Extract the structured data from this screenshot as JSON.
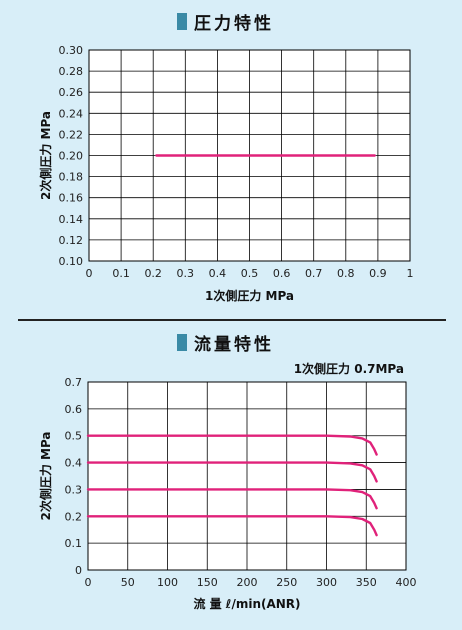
{
  "colors": {
    "background": "#d8eef8",
    "title_marker": "#3a8aa6",
    "series": "#e0227a",
    "grid": "#000000",
    "divider": "#222222"
  },
  "chart_data": [
    {
      "type": "line",
      "title": "圧力特性",
      "xlabel": "1次側圧力 MPa",
      "ylabel": "2次側圧力 MPa",
      "xlim": [
        0,
        1
      ],
      "ylim": [
        0.1,
        0.3
      ],
      "xticks": [
        "0",
        "0.1",
        "0.2",
        "0.3",
        "0.4",
        "0.5",
        "0.6",
        "0.7",
        "0.8",
        "0.9",
        "1"
      ],
      "yticks": [
        "0.10",
        "0.12",
        "0.14",
        "0.16",
        "0.18",
        "0.20",
        "0.22",
        "0.24",
        "0.26",
        "0.28",
        "0.30"
      ],
      "grid": true,
      "series": [
        {
          "x": [
            0.21,
            0.89
          ],
          "y": [
            0.2,
            0.2
          ]
        }
      ]
    },
    {
      "type": "line",
      "title": "流量特性",
      "annotation": "1次側圧力 0.7MPa",
      "xlabel": "流 量 ℓ/min(ANR)",
      "ylabel": "2次側圧力 MPa",
      "xlim": [
        0,
        400
      ],
      "ylim": [
        0,
        0.7
      ],
      "xticks": [
        "0",
        "50",
        "100",
        "150",
        "200",
        "250",
        "300",
        "350",
        "400"
      ],
      "yticks": [
        "0",
        "0.1",
        "0.2",
        "0.3",
        "0.4",
        "0.5",
        "0.6",
        "0.7"
      ],
      "grid": true,
      "series": [
        {
          "x": [
            0,
            300,
            330,
            345,
            355,
            360,
            363
          ],
          "y": [
            0.5,
            0.5,
            0.497,
            0.49,
            0.475,
            0.45,
            0.43
          ]
        },
        {
          "x": [
            0,
            300,
            330,
            345,
            355,
            360,
            363
          ],
          "y": [
            0.4,
            0.4,
            0.397,
            0.39,
            0.375,
            0.35,
            0.33
          ]
        },
        {
          "x": [
            0,
            300,
            330,
            345,
            355,
            360,
            363
          ],
          "y": [
            0.3,
            0.3,
            0.297,
            0.29,
            0.275,
            0.25,
            0.23
          ]
        },
        {
          "x": [
            0,
            300,
            330,
            345,
            355,
            360,
            363
          ],
          "y": [
            0.2,
            0.2,
            0.197,
            0.19,
            0.175,
            0.15,
            0.13
          ]
        }
      ]
    }
  ]
}
